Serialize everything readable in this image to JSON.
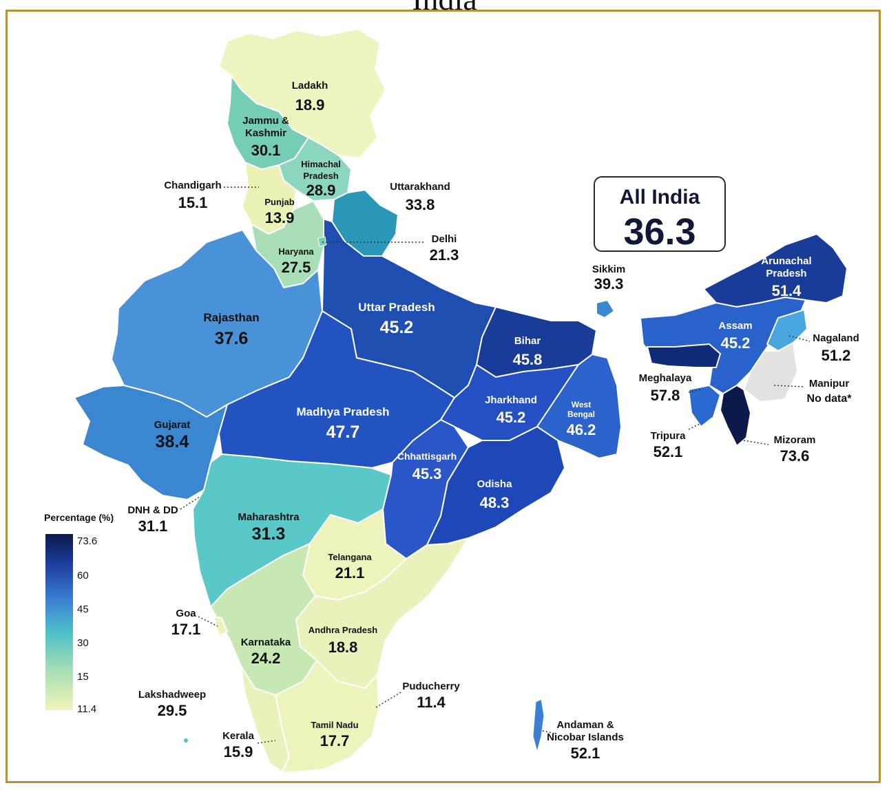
{
  "page_title": "India",
  "all_india": {
    "label": "All India",
    "value": "36.3"
  },
  "legend": {
    "title": "Percentage (%)",
    "ticks": [
      "73.6",
      "60",
      "45",
      "30",
      "15",
      "11.4"
    ]
  },
  "colors": {
    "frame": "#b8923a",
    "scale_min": "#f3f4b8",
    "scale_15": "#a8dfb6",
    "scale_30": "#4fc1c8",
    "scale_45": "#3a7fd4",
    "scale_60": "#1f3fa0",
    "scale_max": "#0b1a4a",
    "no_data": "#e2e2e2"
  },
  "regions": [
    {
      "name": "Ladakh",
      "value": "18.9"
    },
    {
      "name": "Jammu & Kashmir",
      "value": "30.1"
    },
    {
      "name": "Himachal Pradesh",
      "value": "28.9"
    },
    {
      "name": "Chandigarh",
      "value": "15.1"
    },
    {
      "name": "Punjab",
      "value": "13.9"
    },
    {
      "name": "Uttarakhand",
      "value": "33.8"
    },
    {
      "name": "Delhi",
      "value": "21.3"
    },
    {
      "name": "Haryana",
      "value": "27.5"
    },
    {
      "name": "Rajasthan",
      "value": "37.6"
    },
    {
      "name": "Uttar Pradesh",
      "value": "45.2"
    },
    {
      "name": "Bihar",
      "value": "45.8"
    },
    {
      "name": "Sikkim",
      "value": "39.3"
    },
    {
      "name": "Arunachal Pradesh",
      "value": "51.4"
    },
    {
      "name": "Assam",
      "value": "45.2"
    },
    {
      "name": "Nagaland",
      "value": "51.2"
    },
    {
      "name": "Manipur",
      "value": "No data*"
    },
    {
      "name": "Meghalaya",
      "value": "57.8"
    },
    {
      "name": "Tripura",
      "value": "52.1"
    },
    {
      "name": "Mizoram",
      "value": "73.6"
    },
    {
      "name": "Gujarat",
      "value": "38.4"
    },
    {
      "name": "Madhya Pradesh",
      "value": "47.7"
    },
    {
      "name": "Jharkhand",
      "value": "45.2"
    },
    {
      "name": "West Bengal",
      "value": "46.2"
    },
    {
      "name": "Chhattisgarh",
      "value": "45.3"
    },
    {
      "name": "Odisha",
      "value": "48.3"
    },
    {
      "name": "DNH & DD",
      "value": "31.1"
    },
    {
      "name": "Maharashtra",
      "value": "31.3"
    },
    {
      "name": "Telangana",
      "value": "21.1"
    },
    {
      "name": "Goa",
      "value": "17.1"
    },
    {
      "name": "Andhra Pradesh",
      "value": "18.8"
    },
    {
      "name": "Karnataka",
      "value": "24.2"
    },
    {
      "name": "Lakshadweep",
      "value": "29.5"
    },
    {
      "name": "Puducherry",
      "value": "11.4"
    },
    {
      "name": "Kerala",
      "value": "15.9"
    },
    {
      "name": "Tamil Nadu",
      "value": "17.7"
    },
    {
      "name": "Andaman & Nicobar Islands",
      "value": "52.1"
    }
  ],
  "label_lines": {
    "jk_1": "Jammu &",
    "jk_2": "Kashmir",
    "hp_1": "Himachal",
    "hp_2": "Pradesh",
    "ar_1": "Arunachal",
    "ar_2": "Pradesh",
    "wb_1": "West",
    "wb_2": "Bengal",
    "an_1": "Andaman &",
    "an_2": "Nicobar Islands"
  }
}
